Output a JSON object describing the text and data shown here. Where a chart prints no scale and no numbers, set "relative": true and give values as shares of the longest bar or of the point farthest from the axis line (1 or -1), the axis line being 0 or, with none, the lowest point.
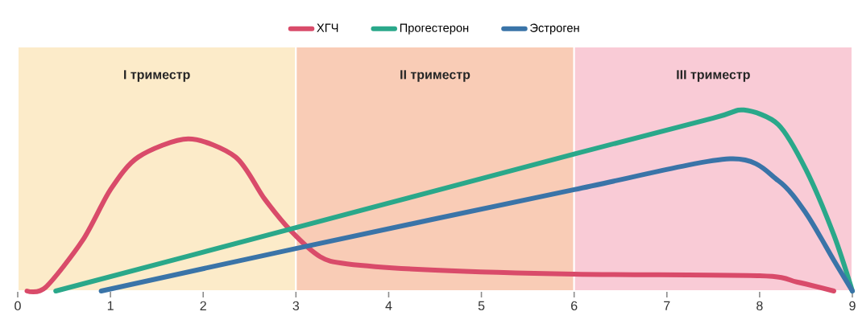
{
  "chart_data": {
    "type": "line",
    "relative": true,
    "legend": "top",
    "line_style": "solid",
    "marker": "none",
    "xlim": [
      0,
      9
    ],
    "xticks": [
      0,
      1,
      2,
      3,
      4,
      5,
      6,
      7,
      8,
      9
    ],
    "bands": [
      {
        "axis": "x",
        "from": 0,
        "to": 3,
        "label": "I триместр",
        "color": "#fcebc9"
      },
      {
        "axis": "x",
        "from": 3,
        "to": 6,
        "label": "II триместр",
        "color": "#f9ccb6"
      },
      {
        "axis": "x",
        "from": 6,
        "to": 9,
        "label": "III триместр",
        "color": "#f9cbd6"
      }
    ],
    "series": [
      {
        "name": "ХГЧ",
        "color": "#d94b6a",
        "x": [
          0.1,
          0.3,
          0.7,
          1.0,
          1.3,
          1.84,
          2.35,
          2.66,
          2.95,
          3.26,
          3.55,
          4.5,
          6,
          8,
          8.4,
          8.8
        ],
        "values": [
          0,
          0.02,
          0.28,
          0.56,
          0.74,
          0.84,
          0.74,
          0.51,
          0.33,
          0.19,
          0.15,
          0.115,
          0.093,
          0.084,
          0.05,
          0
        ]
      },
      {
        "name": "Прогестерон",
        "color": "#2aa88a",
        "x": [
          0.41,
          3,
          6,
          7.5,
          7.83,
          8.2,
          8.5,
          8.8,
          9
        ],
        "values": [
          0,
          0.35,
          0.757,
          0.955,
          1.0,
          0.92,
          0.67,
          0.31,
          0
        ]
      },
      {
        "name": "Эстроген",
        "color": "#3a74a8",
        "x": [
          0.9,
          3,
          6,
          7.68,
          8.2,
          8.5,
          8.8,
          9
        ],
        "values": [
          0,
          0.235,
          0.56,
          0.73,
          0.61,
          0.43,
          0.17,
          0
        ]
      }
    ]
  }
}
